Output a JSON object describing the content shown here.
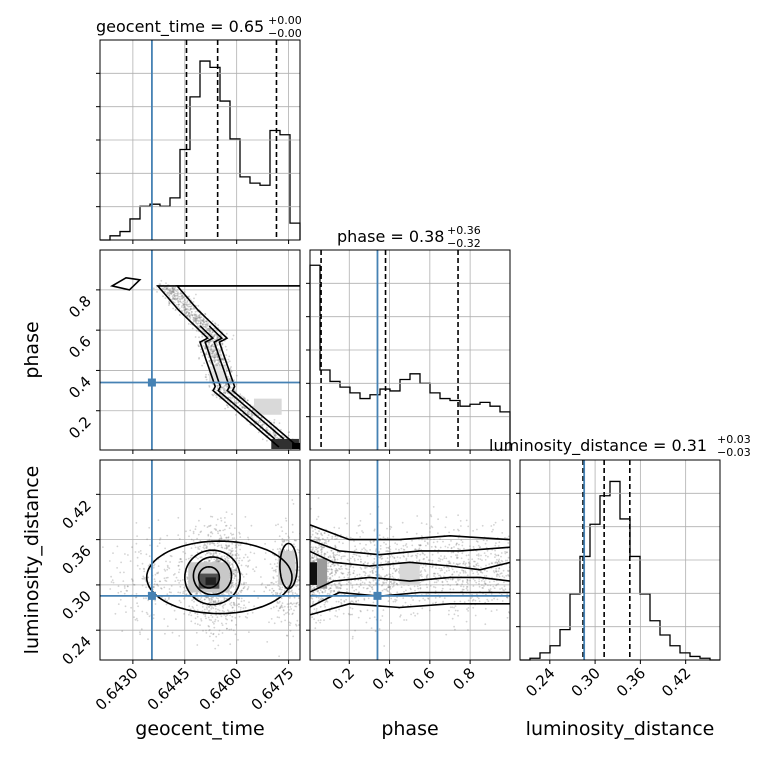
{
  "chart_data": {
    "type": "corner",
    "truth_color": "#4682b4",
    "parameters": [
      "geocent_time",
      "phase",
      "luminosity_distance"
    ],
    "titles": [
      {
        "name": "geocent_time",
        "median": "0.65",
        "plus": "+0.00",
        "minus": "−0.00"
      },
      {
        "name": "phase",
        "median": "0.38",
        "plus": "+0.36",
        "minus": "−0.32"
      },
      {
        "name": "luminosity_distance",
        "median": "0.31",
        "plus": "+0.03",
        "minus": "−0.03"
      }
    ],
    "axes": {
      "geocent_time": {
        "range": [
          0.64205,
          0.64783
        ],
        "ticks": [
          0.643,
          0.6445,
          0.646,
          0.6475
        ],
        "tick_labels": [
          "0.6430",
          "0.6445",
          "0.6460",
          "0.6475"
        ],
        "label": "geocent_time"
      },
      "phase": {
        "range": [
          0.005,
          0.998
        ],
        "ticks": [
          0.2,
          0.4,
          0.6,
          0.8
        ],
        "tick_labels": [
          "0.2",
          "0.4",
          "0.6",
          "0.8"
        ],
        "label": "phase"
      },
      "luminosity_distance": {
        "range": [
          0.2005,
          0.4655
        ],
        "ticks": [
          0.24,
          0.3,
          0.36,
          0.42
        ],
        "tick_labels": [
          "0.24",
          "0.30",
          "0.36",
          "0.42"
        ],
        "label": "luminosity_distance"
      }
    },
    "truths": {
      "geocent_time": 0.64355,
      "phase": 0.34,
      "luminosity_distance": 0.2855
    },
    "quantiles": {
      "geocent_time": [
        0.64455,
        0.64545,
        0.64715
      ],
      "phase": [
        0.06,
        0.38,
        0.74
      ],
      "luminosity_distance": [
        0.284,
        0.312,
        0.346
      ]
    },
    "histograms": {
      "geocent_time": [
        0.0,
        0.02,
        0.04,
        0.1,
        0.16,
        0.17,
        0.16,
        0.2,
        0.43,
        0.68,
        0.85,
        0.82,
        0.66,
        0.48,
        0.3,
        0.27,
        0.26,
        0.52,
        0.5,
        0.08
      ],
      "phase": [
        0.97,
        0.42,
        0.36,
        0.33,
        0.3,
        0.27,
        0.29,
        0.32,
        0.31,
        0.37,
        0.4,
        0.35,
        0.3,
        0.27,
        0.26,
        0.23,
        0.24,
        0.25,
        0.23,
        0.2
      ],
      "luminosity_distance": [
        0.0,
        0.01,
        0.04,
        0.08,
        0.17,
        0.37,
        0.58,
        0.76,
        0.92,
        1.0,
        0.79,
        0.58,
        0.37,
        0.22,
        0.14,
        0.08,
        0.04,
        0.02,
        0.01,
        0.0
      ]
    }
  }
}
